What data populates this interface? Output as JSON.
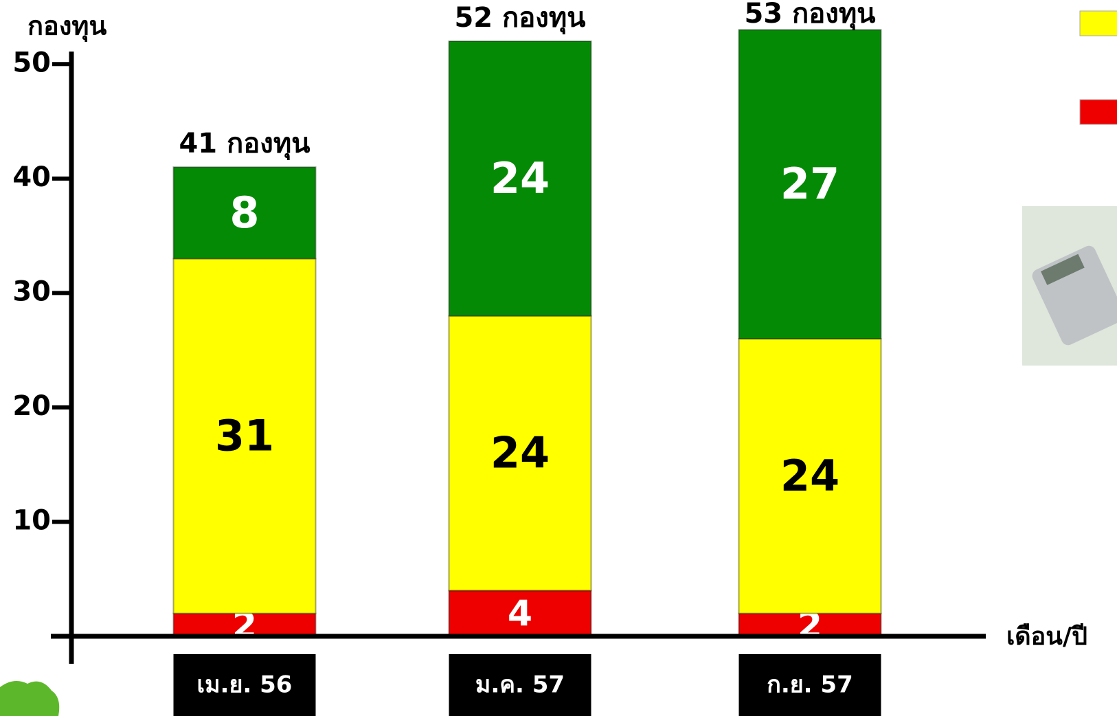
{
  "chart_data": {
    "type": "stacked_bar",
    "y_label": "กองทุน",
    "x_label": "เดือน/ปี",
    "categories": [
      "เม.ย. 56",
      "ม.ค. 57",
      "ก.ย. 57"
    ],
    "series": [
      {
        "color": "#ee0000",
        "values": [
          2,
          4,
          2
        ]
      },
      {
        "color": "#ffff00",
        "values": [
          31,
          24,
          24
        ]
      },
      {
        "color": "#058a05",
        "values": [
          8,
          24,
          27
        ]
      }
    ],
    "total_labels": [
      "41 กองทุน",
      "52 กองทุน",
      "53 กองทุน"
    ],
    "ylim": [
      0,
      55
    ],
    "yticks": [
      10,
      20,
      30,
      40,
      50
    ]
  }
}
